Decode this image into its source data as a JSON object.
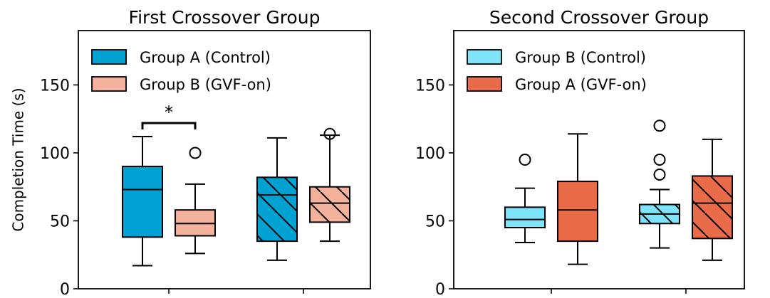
{
  "chart_data": [
    {
      "type": "box",
      "title": "First Crossover Group",
      "ylabel": "Completion Time (s)",
      "xlabel": "",
      "ylim": [
        0,
        190
      ],
      "yticks": [
        0,
        50,
        100,
        150
      ],
      "grid": false,
      "legend_position": "top-left",
      "legend": [
        {
          "label": "Group A (Control)",
          "color": "#00A2D3",
          "hatched": false
        },
        {
          "label": "Group B (GVF-on)",
          "color": "#F4B29D",
          "hatched": false
        }
      ],
      "significance": {
        "label": "*",
        "between": [
          0,
          1
        ]
      },
      "boxes": [
        {
          "series": "Group A (Control)",
          "group": 1,
          "hatched": false,
          "color": "#00A2D3",
          "whisker_low": 17,
          "q1": 38,
          "median": 73,
          "q3": 90,
          "whisker_high": 112,
          "outliers": []
        },
        {
          "series": "Group B (GVF-on)",
          "group": 1,
          "hatched": false,
          "color": "#F4B29D",
          "whisker_low": 26,
          "q1": 39,
          "median": 48,
          "q3": 58,
          "whisker_high": 77,
          "outliers": [
            100
          ]
        },
        {
          "series": "Group A (Control)",
          "group": 2,
          "hatched": true,
          "color": "#00A2D3",
          "whisker_low": 21,
          "q1": 35,
          "median": 69,
          "q3": 82,
          "whisker_high": 111,
          "outliers": []
        },
        {
          "series": "Group B (GVF-on)",
          "group": 2,
          "hatched": true,
          "color": "#F4B29D",
          "whisker_low": 35,
          "q1": 49,
          "median": 63,
          "q3": 75,
          "whisker_high": 113,
          "outliers": [
            114
          ]
        }
      ]
    },
    {
      "type": "box",
      "title": "Second Crossover Group",
      "ylabel": "",
      "xlabel": "",
      "ylim": [
        0,
        190
      ],
      "yticks": [
        0,
        50,
        100,
        150
      ],
      "grid": false,
      "legend_position": "top-left",
      "legend": [
        {
          "label": "Group B (Control)",
          "color": "#7EE4FA",
          "hatched": false
        },
        {
          "label": "Group A (GVF-on)",
          "color": "#EA6B47",
          "hatched": false
        }
      ],
      "boxes": [
        {
          "series": "Group B (Control)",
          "group": 1,
          "hatched": false,
          "color": "#7EE4FA",
          "whisker_low": 34,
          "q1": 45,
          "median": 51,
          "q3": 60,
          "whisker_high": 74,
          "outliers": [
            95
          ]
        },
        {
          "series": "Group A (GVF-on)",
          "group": 1,
          "hatched": false,
          "color": "#EA6B47",
          "whisker_low": 18,
          "q1": 35,
          "median": 58,
          "q3": 79,
          "whisker_high": 114,
          "outliers": []
        },
        {
          "series": "Group B (Control)",
          "group": 2,
          "hatched": true,
          "color": "#7EE4FA",
          "whisker_low": 30,
          "q1": 48,
          "median": 55,
          "q3": 62,
          "whisker_high": 73,
          "outliers": [
            84,
            95,
            120
          ]
        },
        {
          "series": "Group A (GVF-on)",
          "group": 2,
          "hatched": true,
          "color": "#EA6B47",
          "whisker_low": 21,
          "q1": 37,
          "median": 63,
          "q3": 83,
          "whisker_high": 110,
          "outliers": []
        }
      ]
    }
  ]
}
